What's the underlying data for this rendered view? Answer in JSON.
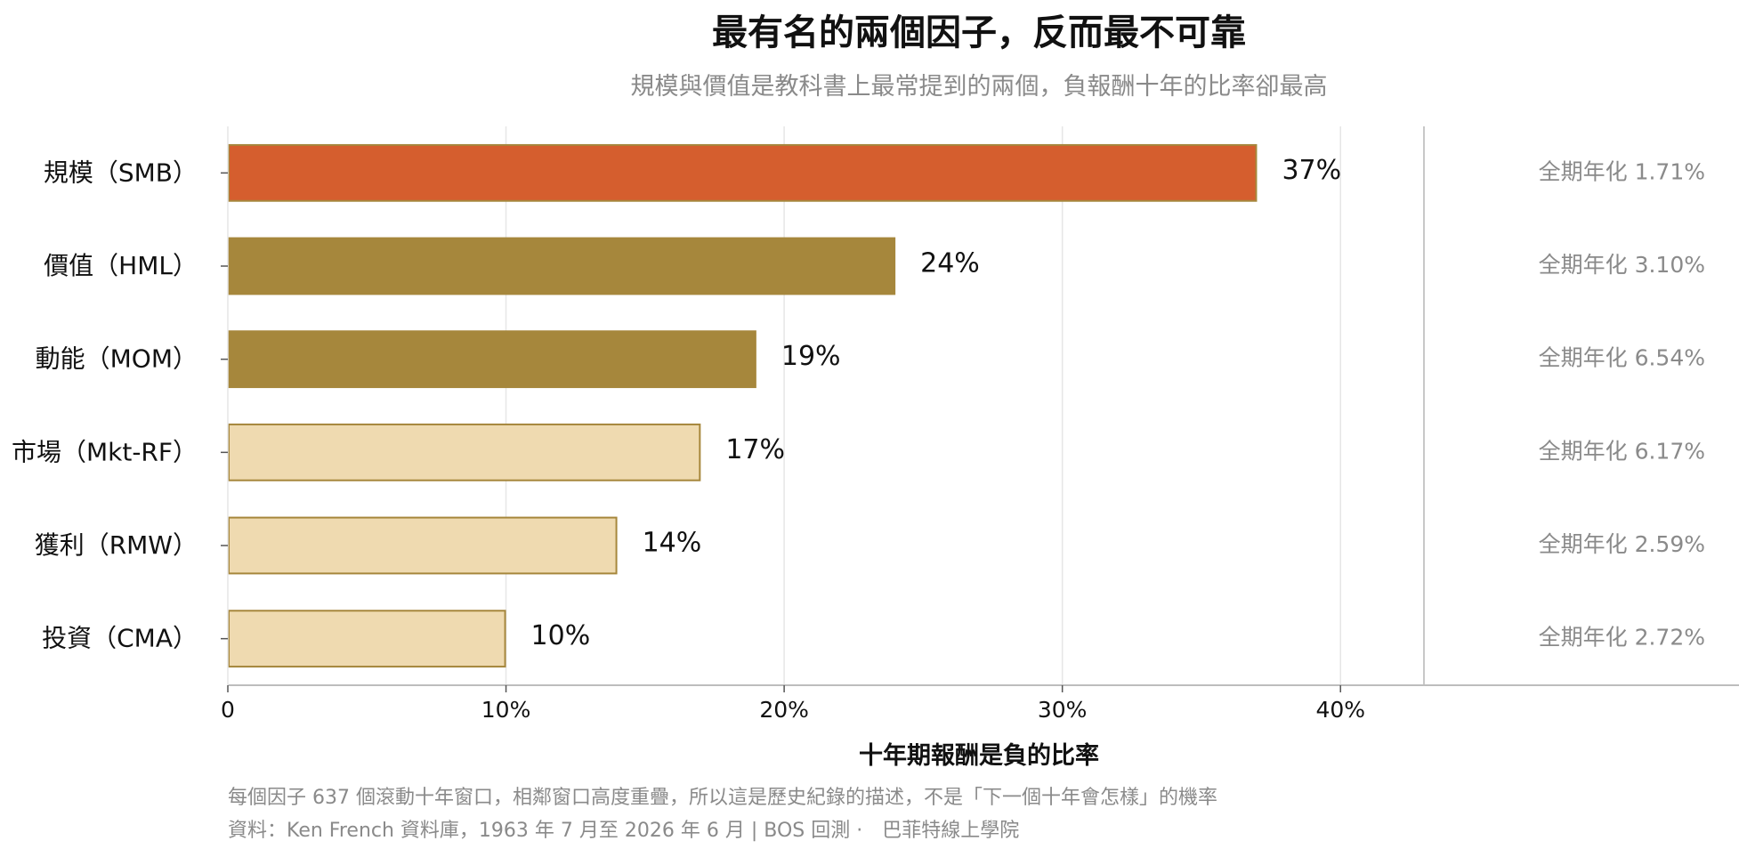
{
  "chart_data": {
    "type": "bar",
    "orientation": "horizontal",
    "title": "最有名的兩個因子，反而最不可靠",
    "subtitle": "規模與價值是教科書上最常提到的兩個，負報酬十年的比率卻最高",
    "xlabel": "十年期報酬是負的比率",
    "ylabel": "",
    "xlim": [
      0,
      43
    ],
    "x_ticks": [
      0,
      10,
      20,
      30,
      40
    ],
    "x_tick_labels": [
      "0",
      "10%",
      "20%",
      "30%",
      "40%"
    ],
    "grid": "vertical",
    "categories": [
      "規模（SMB）",
      "價值（HML）",
      "動能（MOM）",
      "市場（Mkt-RF）",
      "獲利（RMW）",
      "投資（CMA）"
    ],
    "values": [
      37,
      24,
      19,
      17,
      14,
      10
    ],
    "value_labels": [
      "37%",
      "24%",
      "19%",
      "17%",
      "14%",
      "10%"
    ],
    "side_annotations": [
      "全期年化 1.71%",
      "全期年化 3.10%",
      "全期年化 6.54%",
      "全期年化 6.17%",
      "全期年化 2.59%",
      "全期年化 2.72%"
    ],
    "bar_colors": [
      "#D55E2E",
      "#A6873C",
      "#A6873C",
      "#EFDAB0",
      "#EFDAB0",
      "#EFDAB0"
    ],
    "bar_edge_color": "#A6873C",
    "footnotes": [
      "每個因子 637 個滾動十年窗口，相鄰窗口高度重疊，所以這是歷史紀錄的描述，不是「下一個十年會怎樣」的機率",
      "資料：Ken French 資料庫，1963 年 7 月至 2026 年 6 月 | BOS 回測 ·　巴菲特線上學院"
    ]
  }
}
